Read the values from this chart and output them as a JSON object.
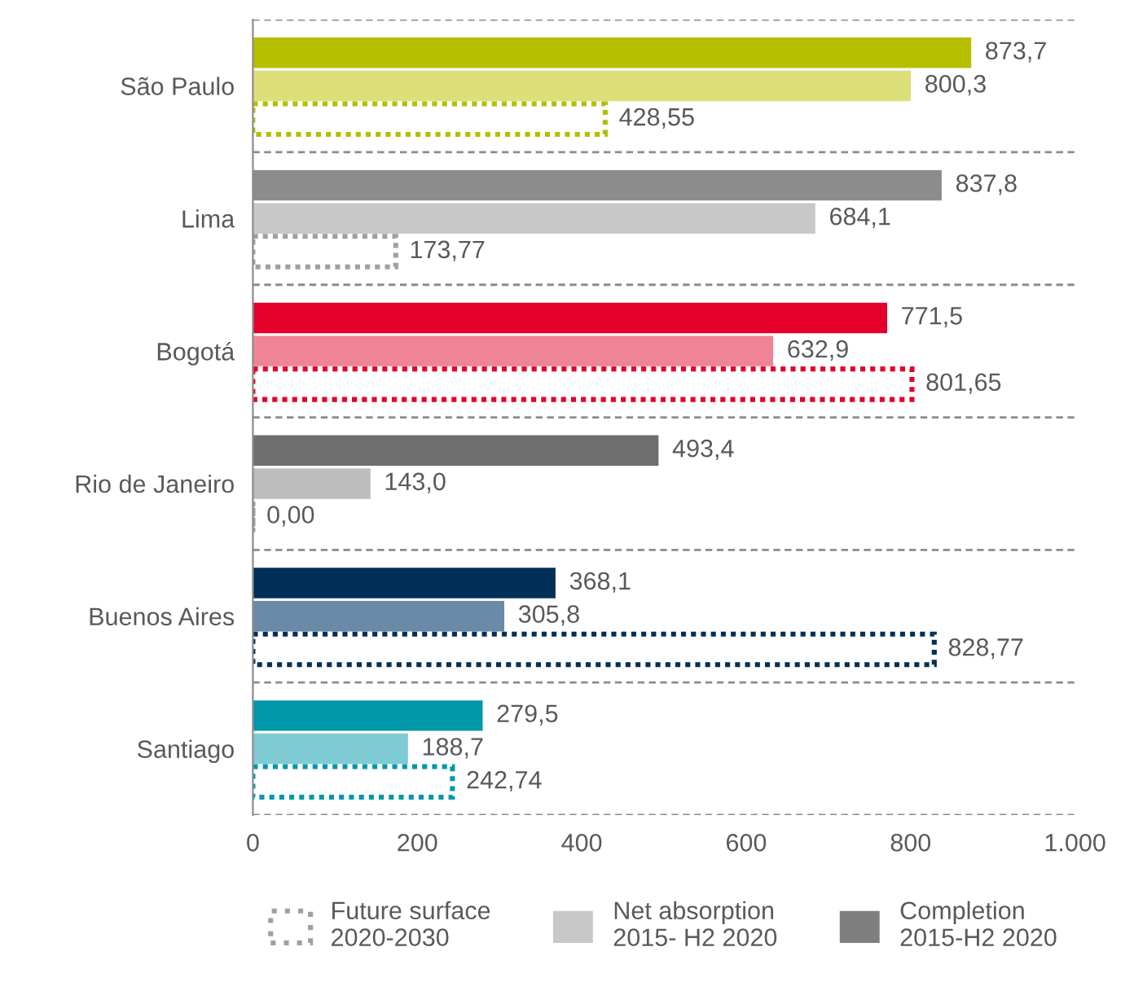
{
  "chart_data": {
    "type": "bar",
    "orientation": "horizontal",
    "categories": [
      "São Paulo",
      "Lima",
      "Bogotá",
      "Rio de Janeiro",
      "Buenos Aires",
      "Santiago"
    ],
    "series": [
      {
        "name": "Completion\n2015-H2 2020",
        "color": "#7f7f7f",
        "colors": [
          "#b5be00",
          "#8c8c8c",
          "#e4002b",
          "#6e6e6e",
          "#003057",
          "#0097a9"
        ],
        "values": [
          873.7,
          837.8,
          771.5,
          493.4,
          368.1,
          279.5
        ],
        "value_labels": [
          "873,7",
          "837,8",
          "771,5",
          "493,4",
          "368,1",
          "279,5"
        ]
      },
      {
        "name": "Net absorption\n2015- H2 2020",
        "color": "#c8c8c8",
        "colors": [
          "#dde07a",
          "#c8c8c8",
          "#f08497",
          "#bdbdbd",
          "#6b8aa8",
          "#7fcbd4"
        ],
        "values": [
          800.3,
          684.1,
          632.9,
          143.0,
          305.8,
          188.7
        ],
        "value_labels": [
          "800,3",
          "684,1",
          "632,9",
          "143,0",
          "305,8",
          "188,7"
        ]
      },
      {
        "name": "Future surface\n2020-2030",
        "color": "#a0a0a0",
        "line_style": "dotted",
        "colors": [
          "#b5be00",
          "#a0a0a0",
          "#e4002b",
          "#a0a0a0",
          "#003057",
          "#0097a9"
        ],
        "values": [
          428.55,
          173.77,
          801.65,
          0.0,
          828.77,
          242.74
        ],
        "value_labels": [
          "428,55",
          "173,77",
          "801,65",
          "0,00",
          "828,77",
          "242,74"
        ]
      }
    ],
    "xlim": [
      0,
      1000
    ],
    "xticks": [
      0,
      200,
      400,
      600,
      800,
      {
        "value": 1000,
        "label": "1.000"
      }
    ],
    "grid": "y",
    "legend": "bottom"
  }
}
